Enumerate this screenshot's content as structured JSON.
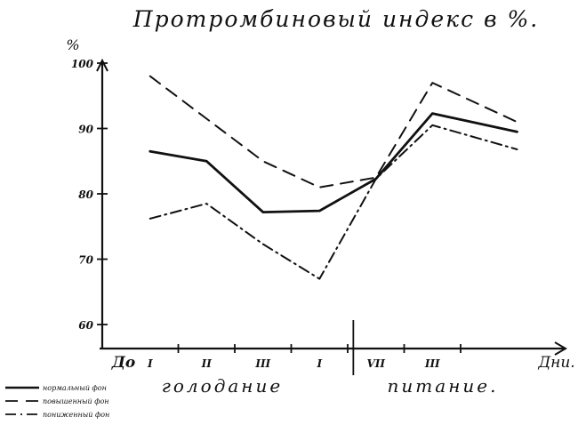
{
  "chart_data": {
    "type": "line",
    "title": "Протромбиновый индекс в %.",
    "ylabel": "%",
    "xlabel": "Дни.",
    "ylim": [
      55,
      103
    ],
    "yticks": [
      60,
      70,
      80,
      90,
      100
    ],
    "x_categories": [
      "До",
      "I",
      "II",
      "III",
      "I",
      "VII",
      "III"
    ],
    "phase_labels": [
      "голодание",
      "питание."
    ],
    "grid": false,
    "legend_position": "bottom-left",
    "series": [
      {
        "name": "нормальный фон",
        "style": "solid",
        "points": [
          [
            0.5,
            86.5
          ],
          [
            1.5,
            85
          ],
          [
            2.5,
            77.2
          ],
          [
            3.5,
            77.4
          ],
          [
            4.5,
            82.3
          ],
          [
            5.5,
            92.3
          ],
          [
            7.0,
            89.5
          ]
        ]
      },
      {
        "name": "повышенный фон",
        "style": "dashed",
        "points": [
          [
            0.5,
            98
          ],
          [
            1.5,
            91.5
          ],
          [
            2.5,
            85
          ],
          [
            3.5,
            81
          ],
          [
            4.5,
            82.5
          ],
          [
            5.5,
            97
          ],
          [
            7.0,
            91
          ]
        ]
      },
      {
        "name": "пониженный фон",
        "style": "dashdot",
        "points": [
          [
            0.5,
            76.2
          ],
          [
            1.5,
            78.5
          ],
          [
            2.5,
            72.3
          ],
          [
            3.5,
            67
          ],
          [
            4.5,
            82.3
          ],
          [
            5.5,
            90.5
          ],
          [
            7.0,
            86.8
          ]
        ]
      }
    ],
    "colors": {
      "ink": "#111111",
      "background": "#ffffff"
    }
  }
}
